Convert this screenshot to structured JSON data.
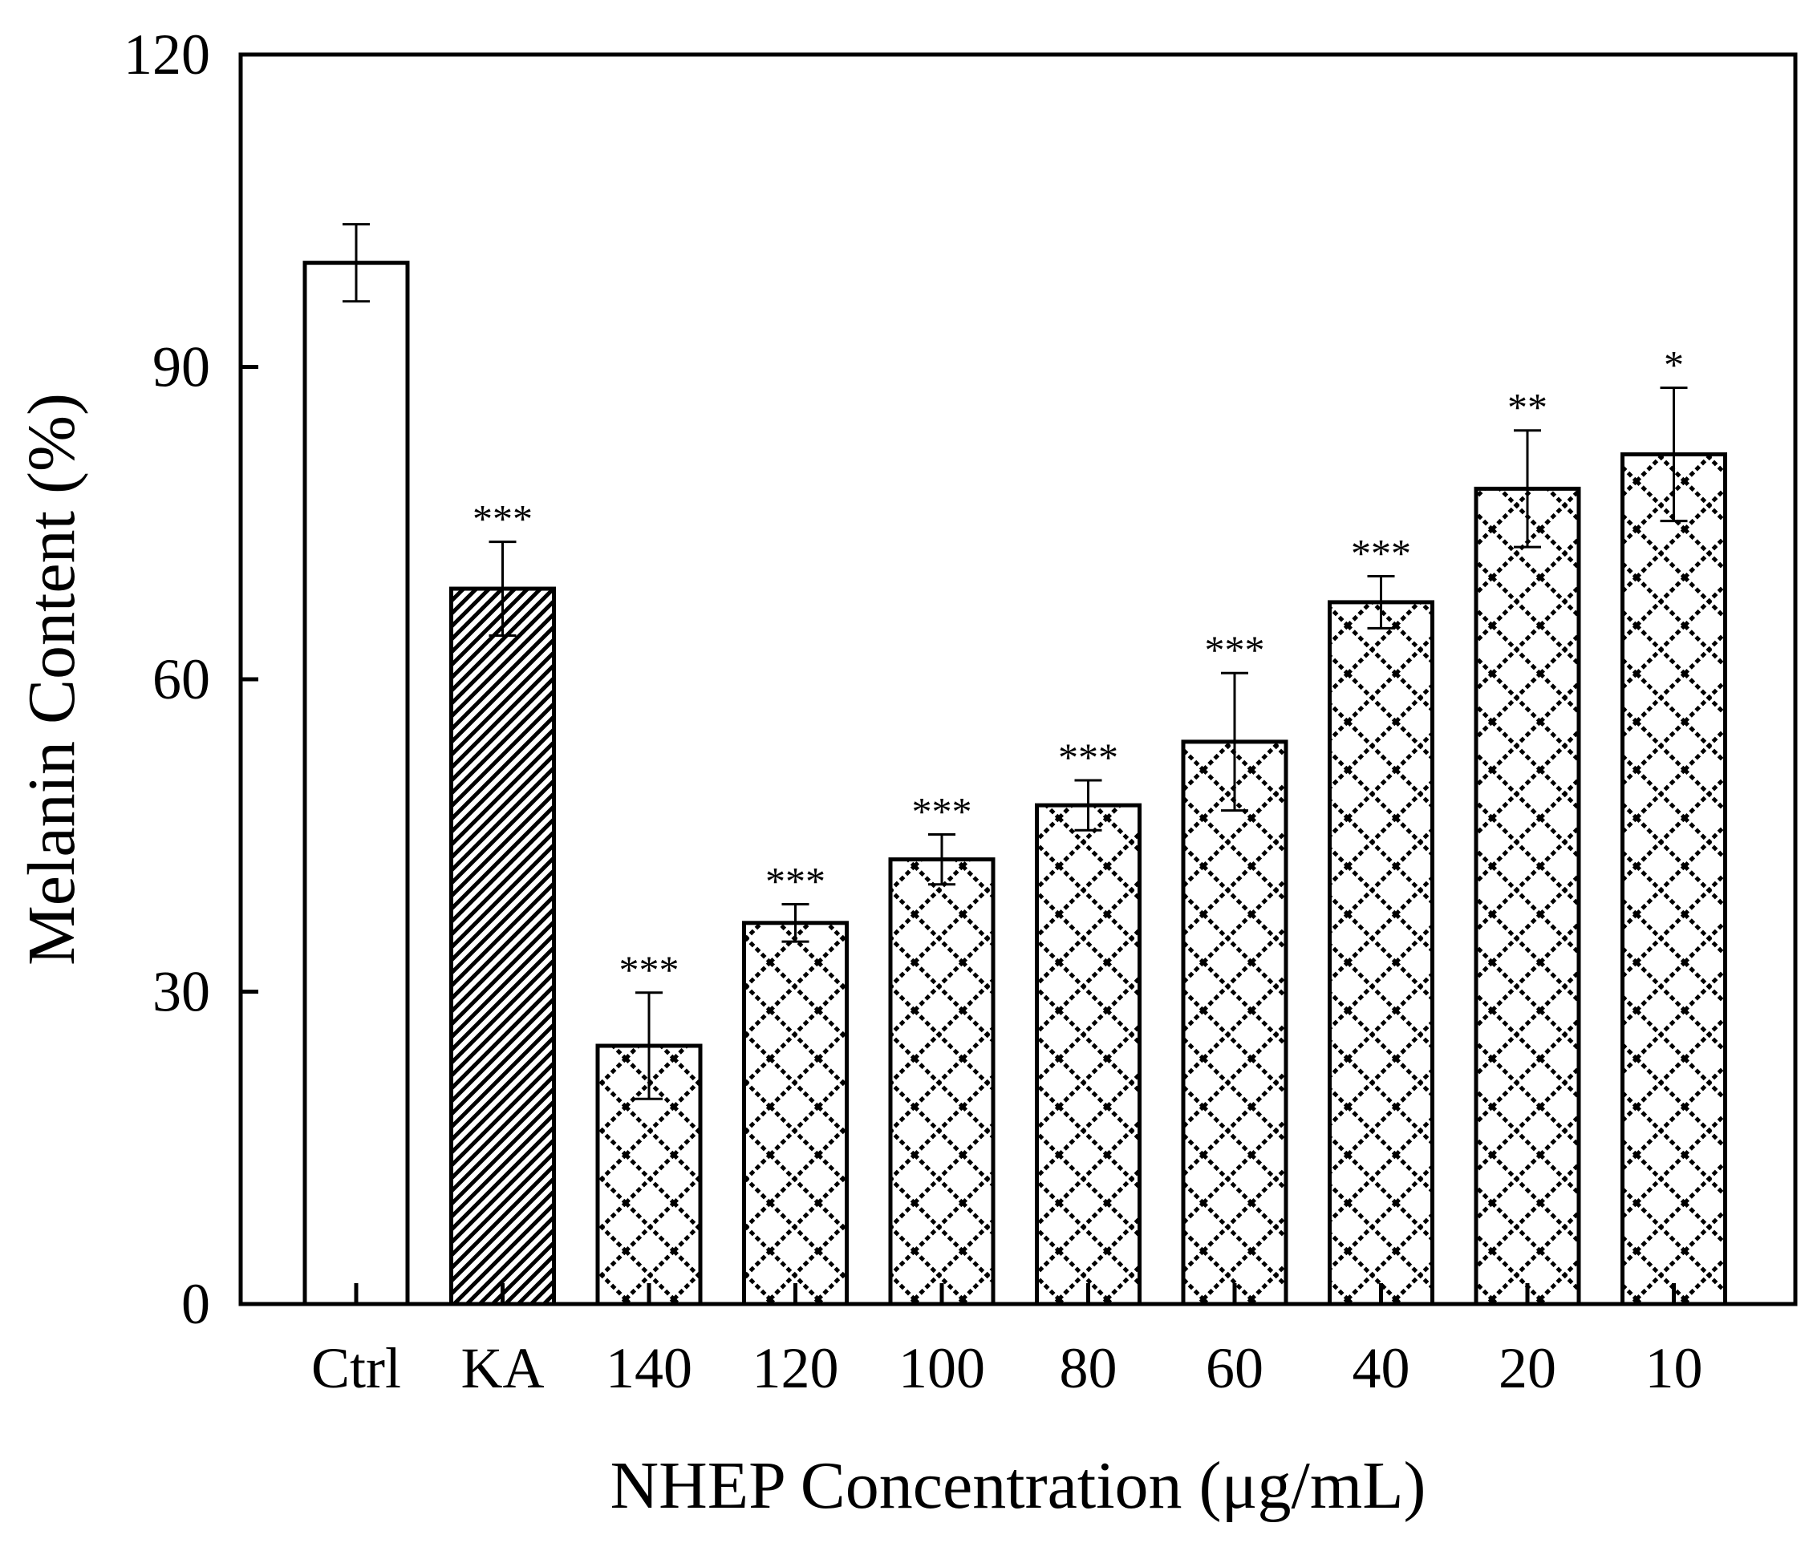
{
  "chart_data": {
    "type": "bar",
    "title": "",
    "xlabel": "NHEP Concentration (μg/mL)",
    "ylabel": "Melanin Content (%)",
    "ylim": [
      0,
      120
    ],
    "yticks": [
      "0",
      "30",
      "60",
      "90",
      "120"
    ],
    "ytick_values": [
      0,
      30,
      60,
      90,
      120
    ],
    "grid": false,
    "legend": "none",
    "categories": [
      "Ctrl",
      "KA",
      "140",
      "120",
      "100",
      "80",
      "60",
      "40",
      "20",
      "10"
    ],
    "values": [
      100.0,
      68.7,
      24.8,
      36.6,
      42.7,
      47.9,
      54.0,
      67.4,
      78.3,
      81.6
    ],
    "errors": [
      3.7,
      4.5,
      5.1,
      1.8,
      2.4,
      2.4,
      6.6,
      2.5,
      5.6,
      6.4
    ],
    "significance": [
      "",
      "***",
      "***",
      "***",
      "***",
      "***",
      "***",
      "***",
      "**",
      "*"
    ],
    "patterns": [
      "empty",
      "diagonal",
      "lattice",
      "lattice",
      "lattice",
      "lattice",
      "lattice",
      "lattice",
      "lattice",
      "lattice"
    ],
    "colors": {
      "bar_fill": "#ffffff",
      "stroke": "#000000"
    }
  }
}
